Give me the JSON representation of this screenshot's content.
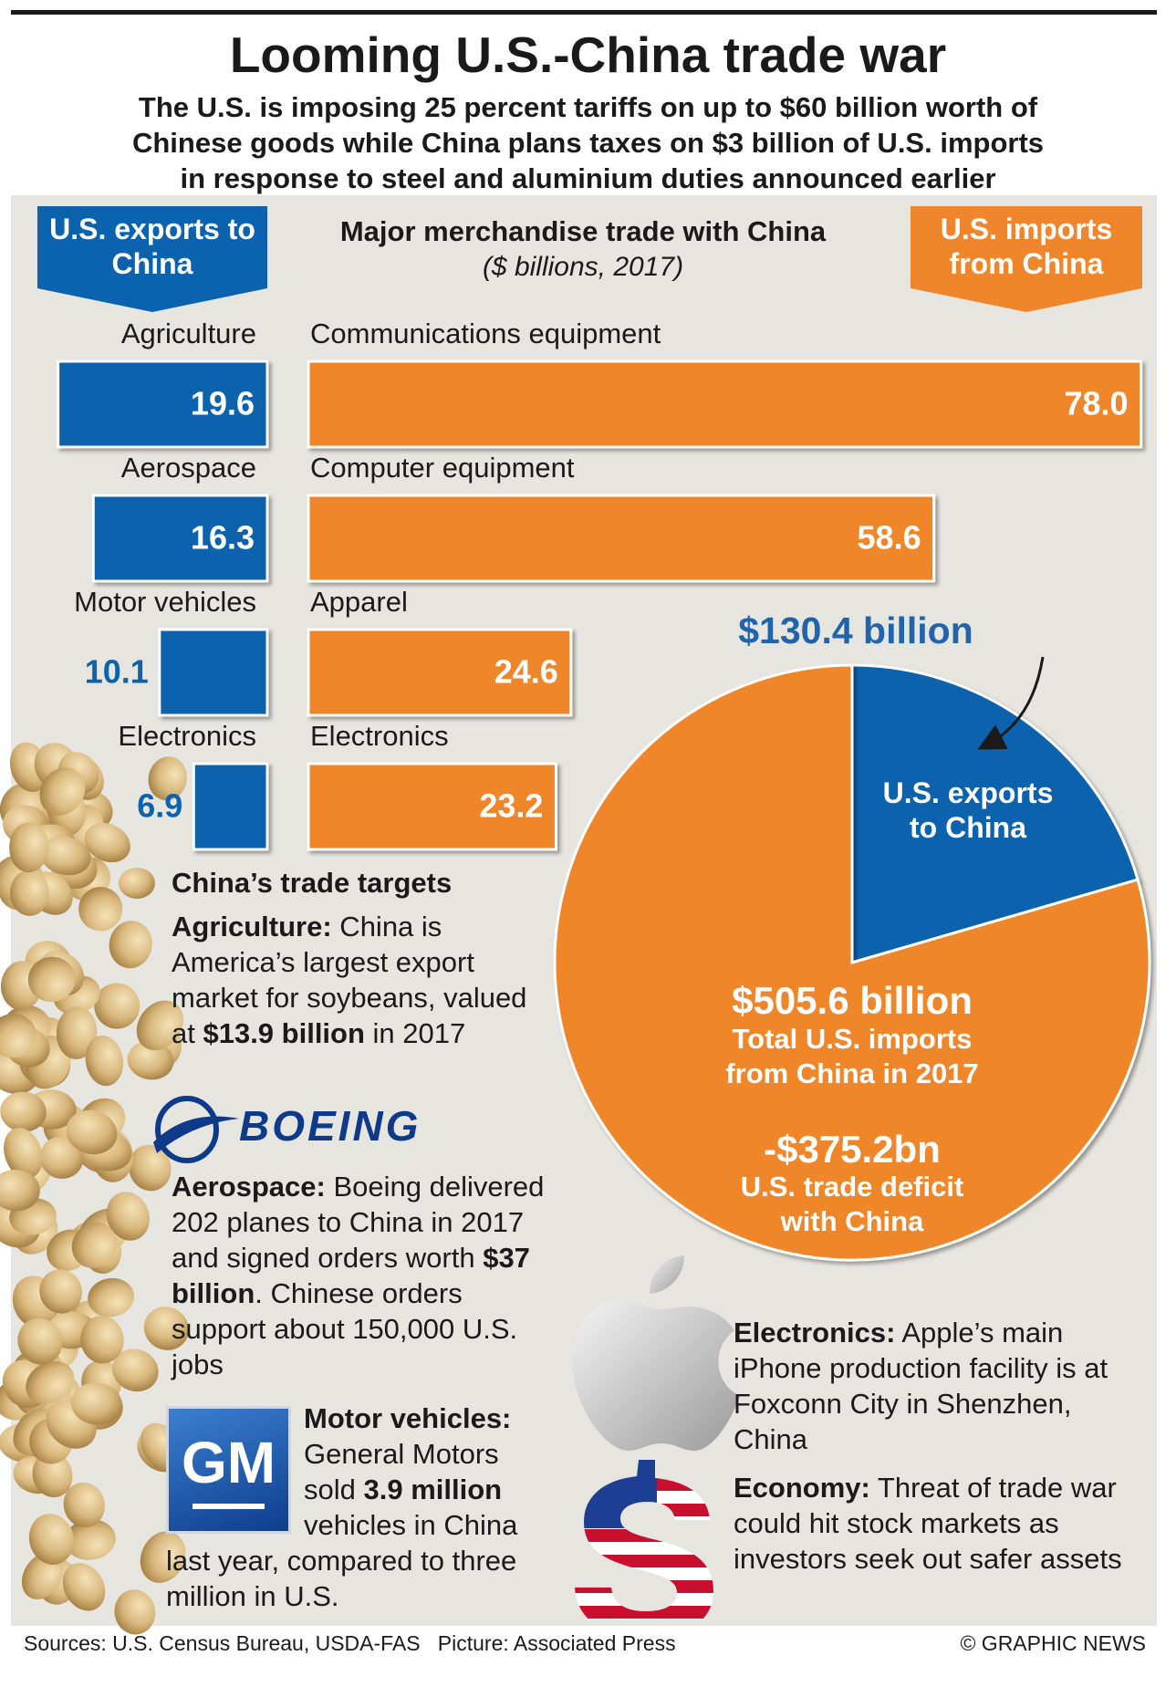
{
  "header": {
    "title": "Looming U.S.-China trade war",
    "subtitle": [
      "The U.S. is imposing 25 percent tariffs on up to $60 billion worth of",
      "Chinese goods while China plans taxes on $3 billion of U.S. imports",
      "in response to steel and aluminium duties announced earlier"
    ]
  },
  "trade_heading": {
    "title": "Major merchandise trade with China",
    "subtitle": "($ billions, 2017)"
  },
  "chart_data": [
    {
      "type": "bar",
      "direction": "left",
      "title": "U.S. exports to China",
      "categories": [
        "Agriculture",
        "Aerospace",
        "Motor vehicles",
        "Electronics"
      ],
      "values": [
        19.6,
        16.3,
        10.1,
        6.9
      ],
      "color": "#0b62ad"
    },
    {
      "type": "bar",
      "direction": "right",
      "title": "U.S. imports from China",
      "categories": [
        "Communications equipment",
        "Computer equipment",
        "Apparel",
        "Electronics"
      ],
      "values": [
        78,
        58.6,
        24.6,
        23.2
      ],
      "value_labels": [
        "78.0",
        "58.6",
        "24.6",
        "23.2"
      ],
      "color": "#f0862b"
    },
    {
      "type": "pie",
      "categories": [
        "U.S. exports to China",
        "Total U.S. imports from China in 2017"
      ],
      "values": [
        130.4,
        505.6
      ],
      "value_labels": [
        "$130.4 billion",
        "$505.6 billion"
      ],
      "colors": [
        "#0b62ad",
        "#f0862b"
      ],
      "annotation": {
        "label": "-$375.2bn",
        "text": "U.S. trade deficit with China"
      }
    }
  ],
  "targets": {
    "title": "China’s trade targets",
    "items": [
      {
        "parts": [
          "Agriculture:",
          " China is America’s largest export market for soybeans, valued at ",
          "$13.9 billion",
          " in 2017"
        ]
      },
      {
        "parts": [
          "Aerospace:",
          " Boeing delivered 202 planes to China in 2017 and signed orders worth ",
          "$37 billion",
          ". Chinese orders support about 150,000 U.S. jobs"
        ]
      },
      {
        "parts": [
          "Motor vehicles:",
          " General Motors sold ",
          "3.9 million",
          " vehicles in China last year, compared to three million in U.S."
        ]
      },
      {
        "parts": [
          "Electronics:",
          " Apple’s main iPhone production facility is at Foxconn City in Shenzhen, China"
        ]
      },
      {
        "parts": [
          "Economy:",
          " Threat of trade war could hit stock markets as investors seek out safer assets"
        ]
      }
    ]
  },
  "logos": {
    "boeing": "BOEING",
    "gm": "GM"
  },
  "footer": {
    "sources": "Sources: U.S. Census Bureau, USDA-FAS   Picture: Associated Press",
    "credit": "© GRAPHIC NEWS"
  }
}
